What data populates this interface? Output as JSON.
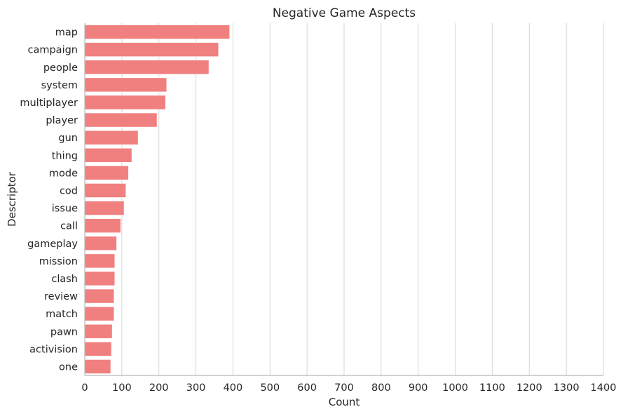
{
  "chart_data": {
    "type": "bar",
    "orientation": "horizontal",
    "title": "Negative Game Aspects",
    "xlabel": "Count",
    "ylabel": "Descriptor",
    "xlim": [
      0,
      1400
    ],
    "xticks": [
      0,
      100,
      200,
      300,
      400,
      500,
      600,
      700,
      800,
      900,
      1000,
      1100,
      1200,
      1300,
      1400
    ],
    "grid": "vertical",
    "bar_color": "#f08080",
    "categories": [
      "map",
      "campaign",
      "people",
      "system",
      "multiplayer",
      "player",
      "gun",
      "thing",
      "mode",
      "cod",
      "issue",
      "call",
      "gameplay",
      "mission",
      "clash",
      "review",
      "match",
      "pawn",
      "activision",
      "one"
    ],
    "values": [
      391,
      361,
      335,
      221,
      218,
      195,
      144,
      127,
      118,
      111,
      106,
      97,
      86,
      81,
      81,
      79,
      79,
      74,
      72,
      70
    ]
  }
}
